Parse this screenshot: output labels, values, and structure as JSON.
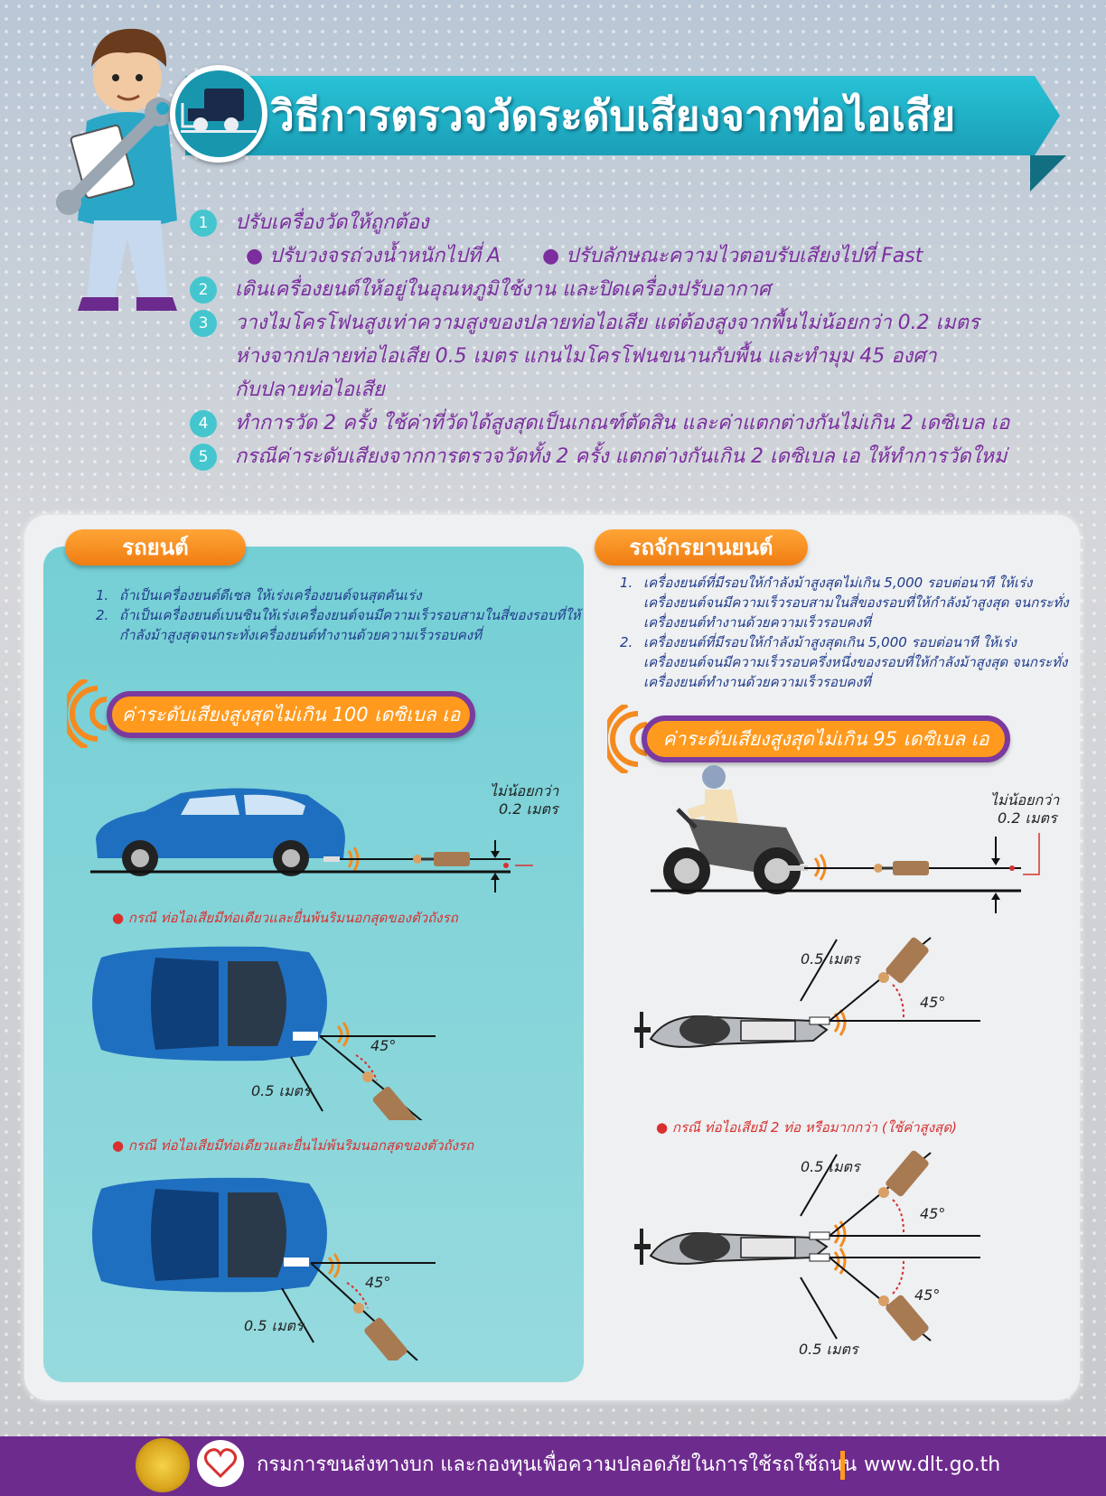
{
  "header": {
    "title": "วิธีการตรวจวัดระดับเสียงจากท่อไอเสีย"
  },
  "steps": [
    {
      "num": "1",
      "text": "ปรับเครื่องวัดให้ถูกต้อง",
      "subs": [
        "● ปรับวงจรถ่วงน้ำหนักไปที่ A",
        "● ปรับลักษณะความไวตอบรับเสียงไปที่ Fast"
      ]
    },
    {
      "num": "2",
      "text": "เดินเครื่องยนต์ให้อยู่ในอุณหภูมิใช้งาน และปิดเครื่องปรับอากาศ"
    },
    {
      "num": "3",
      "text": "วางไมโครโฟนสูงเท่าความสูงของปลายท่อไอเสีย แต่ต้องสูงจากพื้นไม่น้อยกว่า  0.2  เมตร",
      "text2": "ห่างจากปลายท่อไอเสีย 0.5 เมตร แกนไมโครโฟนขนานกับพื้น และทำมุม 45 องศา",
      "text3": "กับปลายท่อไอเสีย"
    },
    {
      "num": "4",
      "text": "ทำการวัด 2 ครั้ง ใช้ค่าที่วัดได้สูงสุดเป็นเกณฑ์ตัดสิน และค่าแตกต่างกันไม่เกิน 2 เดซิเบล เอ"
    },
    {
      "num": "5",
      "text": "กรณีค่าระดับเสียงจากการตรวจวัดทั้ง 2 ครั้ง แตกต่างกันเกิน 2 เดซิเบล เอ ให้ทำการวัดใหม่"
    }
  ],
  "car": {
    "heading": "รถยนต์",
    "items": [
      {
        "n": "1.",
        "text": "ถ้าเป็นเครื่องยนต์ดีเซล ให้เร่งเครื่องยนต์จนสุดคันเร่ง"
      },
      {
        "n": "2.",
        "text": "ถ้าเป็นเครื่องยนต์เบนซินให้เร่งเครื่องยนต์จนมีความเร็วรอบสามในสี่ของรอบที่ให้กำลังม้าสูงสุดจนกระทั่งเครื่องยนต์ทำงานด้วยความเร็วรอบคงที่"
      }
    ],
    "limit": "ค่าระดับเสียงสูงสุดไม่เกิน 100 เดซิเบล เอ",
    "height_label_1": "ไม่น้อยกว่า",
    "height_label_2": "0.2 เมตร",
    "case1": "● กรณี ท่อไอเสียมีท่อเดียวและยื่นพ้นริมนอกสุดของตัวถังรถ",
    "case2": "● กรณี ท่อไอเสียมีท่อเดียวและยื่นไม่พ้นริมนอกสุดของตัวถังรถ",
    "distance": "0.5 เมตร",
    "angle": "45°"
  },
  "moto": {
    "heading": "รถจักรยานยนต์",
    "items": [
      {
        "n": "1.",
        "text": "เครื่องยนต์ที่มีรอบให้กำลังม้าสูงสุดไม่เกิน 5,000 รอบต่อนาที ให้เร่งเครื่องยนต์จนมีความเร็วรอบสามในสี่ของรอบที่ให้กำลังม้าสูงสุด จนกระทั่งเครื่องยนต์ทำงานด้วยความเร็วรอบคงที่"
      },
      {
        "n": "2.",
        "text": "เครื่องยนต์ที่มีรอบให้กำลังม้าสูงสุดเกิน 5,000 รอบต่อนาที ให้เร่งเครื่องยนต์จนมีความเร็วรอบครึ่งหนึ่งของรอบที่ให้กำลังม้าสูงสุด จนกระทั่งเครื่องยนต์ทำงานด้วยความเร็วรอบคงที่"
      }
    ],
    "limit": "ค่าระดับเสียงสูงสุดไม่เกิน 95 เดซิเบล เอ",
    "height_label_1": "ไม่น้อยกว่า",
    "height_label_2": "0.2 เมตร",
    "case": "● กรณี ท่อไอเสียมี 2 ท่อ หรือมากกว่า (ใช้ค่าสูงสุด)",
    "distance": "0.5 เมตร",
    "angle": "45°"
  },
  "footer": {
    "org": "กรมการขนส่งทางบก และกองทุนเพื่อความปลอดภัยในการใช้รถใช้ถนน",
    "url": "www.dlt.go.th"
  },
  "colors": {
    "teal": "#1a9fb7",
    "purple": "#7b2e9e",
    "orange": "#f58a1f",
    "red": "#d83030",
    "blue_car": "#1f6fc0"
  }
}
